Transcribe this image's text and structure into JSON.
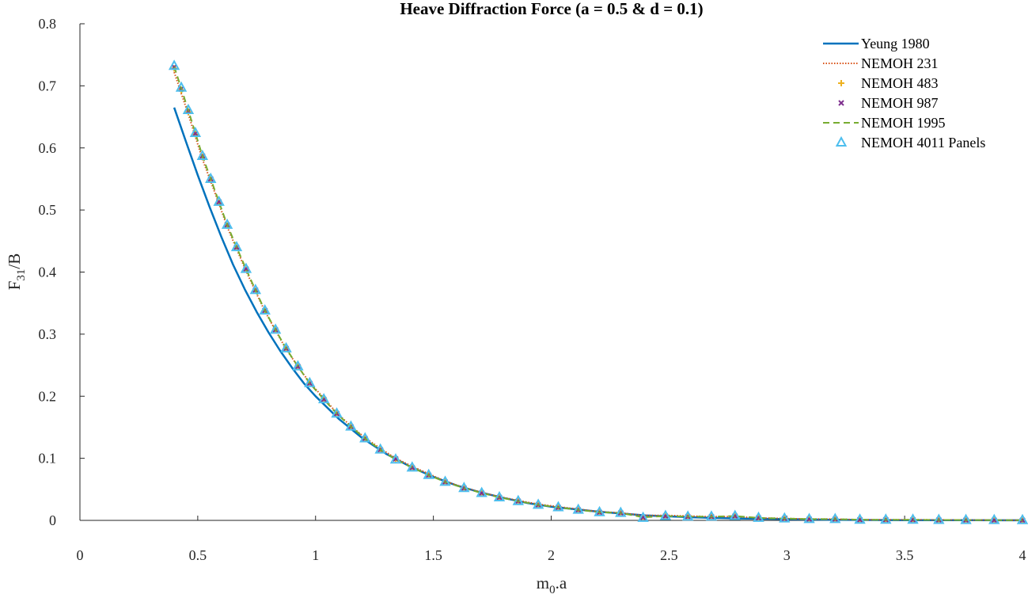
{
  "chart_data": {
    "type": "line",
    "title": "Heave Diffraction Force (a = 0.5 & d = 0.1)",
    "xlabel": {
      "main": "m",
      "sub": "0",
      "tail": ".a"
    },
    "ylabel": {
      "main": "F",
      "sub": "31",
      "tail": "/B"
    },
    "xlim": [
      0,
      4
    ],
    "ylim": [
      0,
      0.8
    ],
    "xticks": [
      "0",
      "0.5",
      "1",
      "1.5",
      "2",
      "2.5",
      "3",
      "3.5",
      "4"
    ],
    "yticks": [
      "0",
      "0.1",
      "0.2",
      "0.3",
      "0.4",
      "0.5",
      "0.6",
      "0.7",
      "0.8"
    ],
    "grid": false,
    "legend_position": "top-right",
    "series": [
      {
        "name": "Yeung 1980",
        "style": "solid",
        "color": "#0072BD",
        "x": [
          0.4,
          0.45,
          0.5,
          0.55,
          0.6,
          0.65,
          0.7,
          0.75,
          0.8,
          0.85,
          0.9,
          0.95,
          1.0,
          1.1,
          1.2,
          1.3,
          1.4,
          1.5,
          1.6,
          1.7,
          1.8,
          1.9,
          2.0,
          2.2,
          2.4,
          2.6,
          2.8,
          3.0,
          3.2,
          3.4,
          3.6,
          3.8,
          4.0
        ],
        "y": [
          0.665,
          0.61,
          0.556,
          0.505,
          0.457,
          0.412,
          0.372,
          0.336,
          0.303,
          0.273,
          0.246,
          0.221,
          0.2,
          0.163,
          0.132,
          0.107,
          0.087,
          0.07,
          0.056,
          0.045,
          0.036,
          0.028,
          0.022,
          0.014,
          0.008,
          0.005,
          0.003,
          0.002,
          0.001,
          0.0005,
          0.0003,
          0.0002,
          0.0001
        ]
      },
      {
        "name": "NEMOH 231",
        "style": "dotted",
        "color": "#D95319",
        "x": [
          0.4,
          0.43,
          0.46,
          0.49,
          0.52,
          0.555,
          0.59,
          0.625,
          0.665,
          0.705,
          0.745,
          0.785,
          0.83,
          0.875,
          0.925,
          0.975,
          1.035,
          1.09,
          1.15,
          1.21,
          1.275,
          1.34,
          1.41,
          1.48,
          1.55,
          1.63,
          1.705,
          1.78,
          1.86,
          1.945,
          2.03,
          2.115,
          2.205,
          2.295,
          2.39,
          2.485,
          2.58,
          2.68,
          2.78,
          2.88,
          2.99,
          3.095,
          3.205,
          3.31,
          3.42,
          3.535,
          3.645,
          3.76,
          3.88,
          4.0
        ],
        "y": [
          0.722,
          0.688,
          0.654,
          0.618,
          0.582,
          0.546,
          0.51,
          0.473,
          0.437,
          0.402,
          0.369,
          0.337,
          0.306,
          0.276,
          0.248,
          0.222,
          0.197,
          0.173,
          0.152,
          0.133,
          0.116,
          0.1,
          0.087,
          0.075,
          0.063,
          0.053,
          0.045,
          0.038,
          0.032,
          0.026,
          0.022,
          0.018,
          0.014,
          0.012,
          0.008,
          0.008,
          0.007,
          0.006,
          0.006,
          0.004,
          0.003,
          0.002,
          0.002,
          0.001,
          0.001,
          0.001,
          0.0008,
          0.0005,
          0.0004,
          0.0003
        ]
      },
      {
        "name": "NEMOH 483",
        "style": "marker-plus",
        "color": "#EDB120",
        "x": [
          0.4,
          0.43,
          0.46,
          0.49,
          0.52,
          0.555,
          0.59,
          0.625,
          0.665,
          0.705,
          0.745,
          0.785,
          0.83,
          0.875,
          0.925,
          0.975,
          1.035,
          1.09,
          1.15,
          1.21,
          1.275,
          1.34,
          1.41,
          1.48,
          1.55,
          1.63,
          1.705,
          1.78,
          1.86,
          1.945,
          2.03,
          2.115,
          2.205,
          2.295,
          2.39,
          2.485,
          2.58,
          2.68,
          2.78,
          2.88,
          2.99,
          3.095,
          3.205,
          3.31,
          3.42,
          3.535,
          3.645,
          3.76,
          3.88,
          4.0
        ],
        "y": [
          0.728,
          0.693,
          0.658,
          0.622,
          0.586,
          0.549,
          0.512,
          0.475,
          0.439,
          0.404,
          0.37,
          0.338,
          0.307,
          0.277,
          0.249,
          0.221,
          0.196,
          0.172,
          0.151,
          0.132,
          0.115,
          0.099,
          0.086,
          0.073,
          0.062,
          0.052,
          0.044,
          0.037,
          0.031,
          0.025,
          0.021,
          0.017,
          0.013,
          0.012,
          0.006,
          0.007,
          0.006,
          0.006,
          0.007,
          0.004,
          0.003,
          0.002,
          0.002,
          0.001,
          0.001,
          0.001,
          0.0007,
          0.0005,
          0.0004,
          0.0003
        ]
      },
      {
        "name": "NEMOH 987",
        "style": "marker-x",
        "color": "#7E2F8E",
        "x": [
          0.4,
          0.43,
          0.46,
          0.49,
          0.52,
          0.555,
          0.59,
          0.625,
          0.665,
          0.705,
          0.745,
          0.785,
          0.83,
          0.875,
          0.925,
          0.975,
          1.035,
          1.09,
          1.15,
          1.21,
          1.275,
          1.34,
          1.41,
          1.48,
          1.55,
          1.63,
          1.705,
          1.78,
          1.86,
          1.945,
          2.03,
          2.115,
          2.205,
          2.295,
          2.39,
          2.485,
          2.58,
          2.68,
          2.78,
          2.88,
          2.99,
          3.095,
          3.205,
          3.31,
          3.42,
          3.535,
          3.645,
          3.76,
          3.88,
          4.0
        ],
        "y": [
          0.73,
          0.695,
          0.659,
          0.623,
          0.587,
          0.55,
          0.513,
          0.476,
          0.44,
          0.405,
          0.371,
          0.338,
          0.307,
          0.277,
          0.248,
          0.221,
          0.195,
          0.172,
          0.151,
          0.132,
          0.114,
          0.099,
          0.085,
          0.073,
          0.062,
          0.052,
          0.044,
          0.037,
          0.031,
          0.025,
          0.021,
          0.017,
          0.013,
          0.012,
          0.005,
          0.007,
          0.006,
          0.006,
          0.007,
          0.004,
          0.003,
          0.002,
          0.002,
          0.001,
          0.001,
          0.001,
          0.0007,
          0.0005,
          0.0004,
          0.0003
        ]
      },
      {
        "name": "NEMOH 1995",
        "style": "dashed",
        "color": "#77AC30",
        "x": [
          0.4,
          0.43,
          0.46,
          0.49,
          0.52,
          0.555,
          0.59,
          0.625,
          0.665,
          0.705,
          0.745,
          0.785,
          0.83,
          0.875,
          0.925,
          0.975,
          1.035,
          1.09,
          1.15,
          1.21,
          1.275,
          1.34,
          1.41,
          1.48,
          1.55,
          1.63,
          1.705,
          1.78,
          1.86,
          1.945,
          2.03,
          2.115,
          2.205,
          2.295,
          2.39,
          2.485,
          2.58,
          2.68,
          2.78,
          2.88,
          2.99,
          3.095,
          3.205,
          3.31,
          3.42,
          3.535,
          3.645,
          3.76,
          3.88,
          4.0
        ],
        "y": [
          0.731,
          0.696,
          0.66,
          0.624,
          0.587,
          0.55,
          0.513,
          0.476,
          0.44,
          0.405,
          0.371,
          0.338,
          0.307,
          0.277,
          0.248,
          0.221,
          0.195,
          0.172,
          0.151,
          0.132,
          0.114,
          0.098,
          0.085,
          0.073,
          0.062,
          0.052,
          0.044,
          0.037,
          0.031,
          0.025,
          0.021,
          0.017,
          0.013,
          0.012,
          0.005,
          0.007,
          0.006,
          0.006,
          0.007,
          0.004,
          0.003,
          0.002,
          0.002,
          0.001,
          0.001,
          0.001,
          0.0007,
          0.0005,
          0.0004,
          0.0003
        ]
      },
      {
        "name": "NEMOH 4011 Panels",
        "style": "marker-triangle",
        "color": "#4DBEEE",
        "x": [
          0.4,
          0.43,
          0.46,
          0.49,
          0.52,
          0.555,
          0.59,
          0.625,
          0.665,
          0.705,
          0.745,
          0.785,
          0.83,
          0.875,
          0.925,
          0.975,
          1.035,
          1.09,
          1.15,
          1.21,
          1.275,
          1.34,
          1.41,
          1.48,
          1.55,
          1.63,
          1.705,
          1.78,
          1.86,
          1.945,
          2.03,
          2.115,
          2.205,
          2.295,
          2.39,
          2.485,
          2.58,
          2.68,
          2.78,
          2.88,
          2.99,
          3.095,
          3.205,
          3.31,
          3.42,
          3.535,
          3.645,
          3.76,
          3.88,
          4.0
        ],
        "y": [
          0.732,
          0.697,
          0.661,
          0.624,
          0.587,
          0.55,
          0.513,
          0.476,
          0.44,
          0.405,
          0.371,
          0.338,
          0.307,
          0.277,
          0.248,
          0.221,
          0.195,
          0.172,
          0.151,
          0.132,
          0.114,
          0.098,
          0.085,
          0.073,
          0.062,
          0.052,
          0.044,
          0.037,
          0.031,
          0.025,
          0.021,
          0.017,
          0.013,
          0.012,
          0.004,
          0.007,
          0.006,
          0.006,
          0.007,
          0.004,
          0.003,
          0.002,
          0.002,
          0.001,
          0.001,
          0.001,
          0.0007,
          0.0005,
          0.0004,
          0.0003
        ]
      }
    ]
  }
}
